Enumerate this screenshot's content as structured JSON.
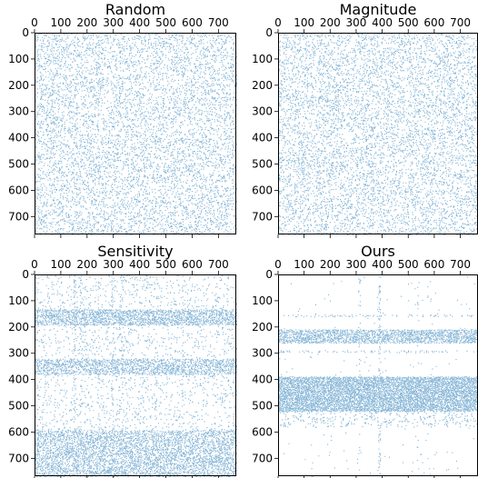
{
  "chart_data": [
    {
      "type": "scatter",
      "title": "Random",
      "xlim": [
        0,
        768
      ],
      "ylim": [
        768,
        0
      ],
      "x_ticks": [
        "0",
        "100",
        "200",
        "300",
        "400",
        "500",
        "600",
        "700"
      ],
      "y_ticks": [
        "0",
        "100",
        "200",
        "300",
        "400",
        "500",
        "600",
        "700"
      ],
      "point_color": "#1f77b4",
      "pattern": "uniform",
      "density": 0.18,
      "dense_bands": [],
      "dense_columns": []
    },
    {
      "type": "scatter",
      "title": "Magnitude",
      "xlim": [
        0,
        768
      ],
      "ylim": [
        768,
        0
      ],
      "x_ticks": [
        "0",
        "100",
        "200",
        "300",
        "400",
        "500",
        "600",
        "700"
      ],
      "y_ticks": [
        "0",
        "100",
        "200",
        "300",
        "400",
        "500",
        "600",
        "700"
      ],
      "point_color": "#1f77b4",
      "pattern": "uniform",
      "density": 0.18,
      "dense_bands": [],
      "dense_columns": []
    },
    {
      "type": "scatter",
      "title": "Sensitivity",
      "xlim": [
        0,
        768
      ],
      "ylim": [
        768,
        0
      ],
      "x_ticks": [
        "0",
        "100",
        "200",
        "300",
        "400",
        "500",
        "600",
        "700"
      ],
      "y_ticks": [
        "0",
        "100",
        "200",
        "300",
        "400",
        "500",
        "600",
        "700"
      ],
      "point_color": "#1f77b4",
      "pattern": "row-bands",
      "density": 0.07,
      "dense_bands": [
        [
          130,
          190,
          0.55
        ],
        [
          320,
          380,
          0.5
        ],
        [
          590,
          768,
          0.45
        ]
      ],
      "dense_columns": [
        [
          150,
          0.25
        ],
        [
          175,
          0.22
        ],
        [
          240,
          0.2
        ],
        [
          295,
          0.25
        ],
        [
          330,
          0.2
        ],
        [
          460,
          0.18
        ],
        [
          560,
          0.22
        ]
      ]
    },
    {
      "type": "scatter",
      "title": "Ours",
      "xlim": [
        0,
        768
      ],
      "ylim": [
        768,
        0
      ],
      "x_ticks": [
        "0",
        "100",
        "200",
        "300",
        "400",
        "500",
        "600",
        "700"
      ],
      "y_ticks": [
        "0",
        "100",
        "200",
        "300",
        "400",
        "500",
        "600",
        "700"
      ],
      "point_color": "#1f77b4",
      "pattern": "row-bands",
      "density": 0.005,
      "dense_bands": [
        [
          205,
          260,
          0.6
        ],
        [
          385,
          520,
          0.8
        ],
        [
          150,
          160,
          0.2
        ],
        [
          285,
          295,
          0.2
        ],
        [
          520,
          580,
          0.12
        ]
      ],
      "dense_columns": [
        [
          310,
          0.15
        ],
        [
          385,
          0.2
        ],
        [
          535,
          0.08
        ]
      ]
    }
  ]
}
